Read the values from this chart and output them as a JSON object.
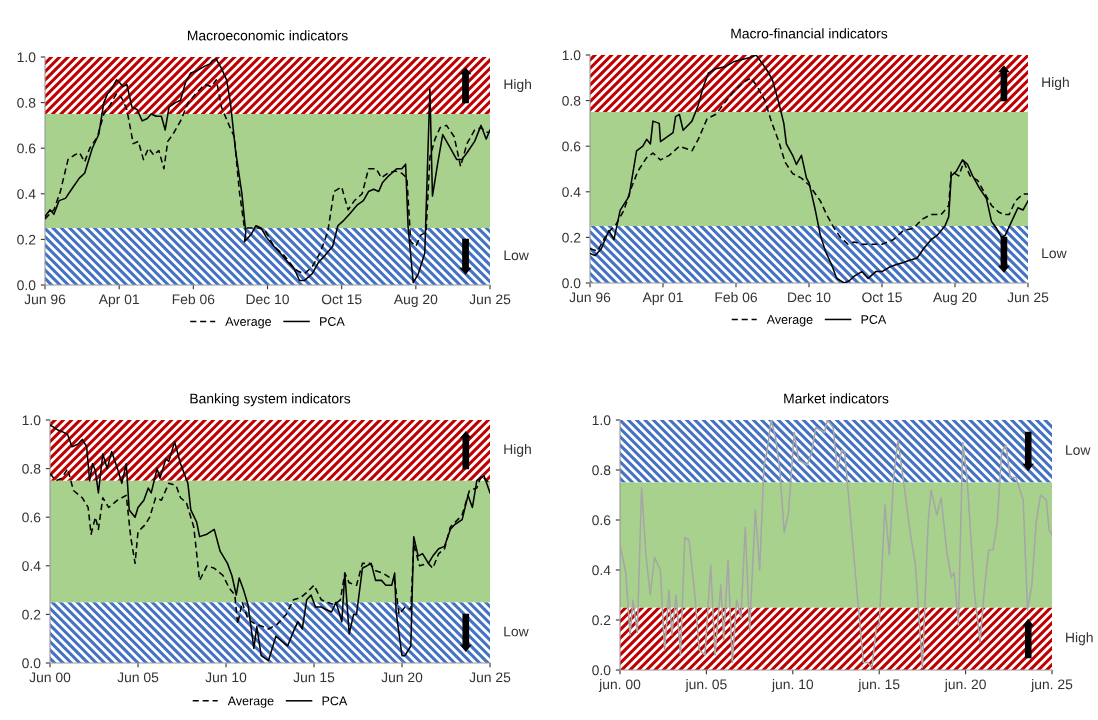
{
  "chart_data": [
    {
      "type": "line",
      "title": "Macroeconomic indicators",
      "legend": "bottom",
      "grid": false,
      "xlim": [
        "1996-06",
        "2025-06"
      ],
      "ylim": [
        0,
        1
      ],
      "xticks": [
        {
          "value": "1996-06",
          "label": "Jun 96"
        },
        {
          "value": "2001-04",
          "label": "Apr 01"
        },
        {
          "value": "2006-02",
          "label": "Feb 06"
        },
        {
          "value": "2010-12",
          "label": "Dec 10"
        },
        {
          "value": "2015-10",
          "label": "Oct 15"
        },
        {
          "value": "2020-08",
          "label": "Aug 20"
        },
        {
          "value": "2025-06",
          "label": "Jun 25"
        }
      ],
      "yticks": [
        {
          "value": 0,
          "label": "0.0"
        },
        {
          "value": 0.2,
          "label": "0.2"
        },
        {
          "value": 0.4,
          "label": "0.4"
        },
        {
          "value": 0.6,
          "label": "0.6"
        },
        {
          "value": 0.8,
          "label": "0.8"
        },
        {
          "value": 1,
          "label": "1.0"
        }
      ],
      "bands": [
        {
          "axis": "y",
          "from": 0.75,
          "to": 1,
          "label": "High",
          "color": "#c00000"
        },
        {
          "axis": "y",
          "from": 0,
          "to": 0.25,
          "label": "Low",
          "color": "#4472c4"
        },
        {
          "axis": "y",
          "from": 0.25,
          "to": 0.75,
          "color": "#a9d18e"
        }
      ],
      "series": [
        {
          "name": "Average",
          "color": "#000000",
          "line_style": "dashed",
          "x": [
            "1996-06",
            "1997-01",
            "1997-06",
            "1997-12",
            "1998-05",
            "1998-09",
            "1999-01",
            "1999-05",
            "1999-11",
            "2000-04",
            "2000-09",
            "2001-02",
            "2001-06",
            "2001-10",
            "2002-03",
            "2002-07",
            "2002-11",
            "2003-03",
            "2003-07",
            "2003-11",
            "2004-03",
            "2004-06",
            "2004-10",
            "2005-04",
            "2005-10",
            "2006-04",
            "2006-11",
            "2007-04",
            "2007-08",
            "2007-12",
            "2008-06",
            "2008-10",
            "2009-02",
            "2009-06",
            "2009-11",
            "2010-05",
            "2010-10",
            "2011-05",
            "2012-01",
            "2012-08",
            "2012-12",
            "2013-05",
            "2013-11",
            "2014-05",
            "2014-11",
            "2015-04",
            "2015-10",
            "2016-03",
            "2016-08",
            "2017-02",
            "2017-07",
            "2018-01",
            "2018-05",
            "2018-10",
            "2019-04",
            "2019-09",
            "2020-01",
            "2020-04",
            "2020-08",
            "2020-12",
            "2021-04",
            "2021-07",
            "2021-11",
            "2022-03",
            "2022-08",
            "2023-02",
            "2023-07",
            "2023-12",
            "2024-06",
            "2024-11",
            "2025-03",
            "2025-06"
          ],
          "values": [
            0.29,
            0.33,
            0.41,
            0.55,
            0.57,
            0.58,
            0.54,
            0.6,
            0.65,
            0.75,
            0.79,
            0.84,
            0.82,
            0.77,
            0.62,
            0.63,
            0.55,
            0.6,
            0.57,
            0.59,
            0.51,
            0.63,
            0.66,
            0.72,
            0.8,
            0.84,
            0.88,
            0.87,
            0.9,
            0.78,
            0.7,
            0.65,
            0.41,
            0.25,
            0.25,
            0.25,
            0.24,
            0.17,
            0.13,
            0.08,
            0.06,
            0.05,
            0.08,
            0.14,
            0.23,
            0.41,
            0.43,
            0.33,
            0.37,
            0.4,
            0.51,
            0.51,
            0.47,
            0.49,
            0.5,
            0.49,
            0.47,
            0.19,
            0.17,
            0.22,
            0.23,
            0.56,
            0.64,
            0.69,
            0.7,
            0.65,
            0.52,
            0.62,
            0.68,
            0.69,
            0.67,
            0.67
          ]
        },
        {
          "name": "PCA",
          "color": "#000000",
          "line_style": "solid",
          "x": [
            "1996-06",
            "1996-10",
            "1997-01",
            "1997-05",
            "1997-10",
            "1998-04",
            "1998-09",
            "1999-01",
            "1999-07",
            "1999-12",
            "2000-04",
            "2000-07",
            "2000-09",
            "2001-02",
            "2001-04",
            "2001-07",
            "2001-10",
            "2002-02",
            "2002-06",
            "2002-10",
            "2003-02",
            "2003-05",
            "2003-09",
            "2004-01",
            "2004-04",
            "2004-07",
            "2004-12",
            "2005-04",
            "2005-08",
            "2005-12",
            "2006-05",
            "2006-11",
            "2007-03",
            "2007-05",
            "2007-08",
            "2007-12",
            "2008-04",
            "2008-07",
            "2008-11",
            "2009-04",
            "2009-07",
            "2009-06",
            "2009-11",
            "2010-03",
            "2010-07",
            "2010-11",
            "2011-05",
            "2011-10",
            "2012-04",
            "2012-09",
            "2013-01",
            "2013-05",
            "2013-11",
            "2014-04",
            "2014-09",
            "2015-03",
            "2015-07",
            "2015-11",
            "2016-04",
            "2016-10",
            "2017-03",
            "2017-07",
            "2017-11",
            "2018-03",
            "2018-06",
            "2018-11",
            "2019-05",
            "2019-09",
            "2019-12",
            "2020-02",
            "2020-06",
            "2020-10",
            "2021-03",
            "2021-07",
            "2021-09",
            "2022-01",
            "2022-05",
            "2022-11",
            "2023-04",
            "2023-08",
            "2023-12",
            "2024-06",
            "2024-11",
            "2025-03",
            "2025-06"
          ],
          "values": [
            0.3,
            0.33,
            0.31,
            0.37,
            0.38,
            0.43,
            0.47,
            0.49,
            0.6,
            0.66,
            0.8,
            0.84,
            0.85,
            0.9,
            0.89,
            0.87,
            0.88,
            0.78,
            0.77,
            0.72,
            0.73,
            0.75,
            0.74,
            0.74,
            0.68,
            0.78,
            0.8,
            0.81,
            0.89,
            0.93,
            0.94,
            0.96,
            0.97,
            0.985,
            0.99,
            0.95,
            0.9,
            0.8,
            0.59,
            0.4,
            0.23,
            0.19,
            0.22,
            0.26,
            0.25,
            0.21,
            0.17,
            0.14,
            0.1,
            0.07,
            0.02,
            0.02,
            0.05,
            0.1,
            0.13,
            0.17,
            0.26,
            0.28,
            0.31,
            0.35,
            0.37,
            0.41,
            0.42,
            0.41,
            0.45,
            0.48,
            0.51,
            0.51,
            0.53,
            0.25,
            0.01,
            0.05,
            0.14,
            0.86,
            0.39,
            0.53,
            0.66,
            0.6,
            0.55,
            0.55,
            0.58,
            0.63,
            0.7,
            0.64,
            0.68
          ]
        }
      ]
    },
    {
      "type": "line",
      "title": "Macro-financial indicators",
      "legend": "bottom",
      "grid": false,
      "xlim": [
        "1996-06",
        "2025-06"
      ],
      "ylim": [
        0,
        1
      ],
      "xticks": [
        {
          "value": "1996-06",
          "label": "Jun 96"
        },
        {
          "value": "2001-04",
          "label": "Apr 01"
        },
        {
          "value": "2006-02",
          "label": "Feb 06"
        },
        {
          "value": "2010-12",
          "label": "Dec 10"
        },
        {
          "value": "2015-10",
          "label": "Oct 15"
        },
        {
          "value": "2020-08",
          "label": "Aug 20"
        },
        {
          "value": "2025-06",
          "label": "Jun 25"
        }
      ],
      "yticks": [
        {
          "value": 0,
          "label": "0.0"
        },
        {
          "value": 0.2,
          "label": "0.2"
        },
        {
          "value": 0.4,
          "label": "0.4"
        },
        {
          "value": 0.6,
          "label": "0.6"
        },
        {
          "value": 0.8,
          "label": "0.8"
        },
        {
          "value": 1,
          "label": "1.0"
        }
      ],
      "bands": [
        {
          "axis": "y",
          "from": 0.75,
          "to": 1,
          "label": "High",
          "color": "#c00000"
        },
        {
          "axis": "y",
          "from": 0,
          "to": 0.25,
          "label": "Low",
          "color": "#4472c4"
        },
        {
          "axis": "y",
          "from": 0.25,
          "to": 0.75,
          "color": "#a9d18e"
        }
      ],
      "series": [
        {
          "name": "Average",
          "color": "#000000",
          "line_style": "dashed",
          "x": [
            "1996-06",
            "1996-12",
            "1997-06",
            "1997-10",
            "1998-03",
            "1998-09",
            "1999-03",
            "1999-08",
            "2000-03",
            "2000-08",
            "2001-02",
            "2001-09",
            "2002-05",
            "2003-03",
            "2003-08",
            "2004-03",
            "2004-10",
            "2005-05",
            "2005-12",
            "2006-08",
            "2007-02",
            "2007-07",
            "2008-01",
            "2008-06",
            "2008-12",
            "2009-05",
            "2009-11",
            "2010-06",
            "2010-12",
            "2011-09",
            "2012-02",
            "2012-08",
            "2013-01",
            "2013-07",
            "2013-12",
            "2014-06",
            "2015-02",
            "2015-10",
            "2016-07",
            "2017-03",
            "2017-11",
            "2018-06",
            "2019-01",
            "2019-09",
            "2020-03",
            "2020-05",
            "2020-11",
            "2021-03",
            "2021-08",
            "2022-02",
            "2022-08",
            "2023-01",
            "2023-07",
            "2023-11",
            "2024-03",
            "2024-08",
            "2025-02",
            "2025-06"
          ],
          "values": [
            0.15,
            0.14,
            0.2,
            0.23,
            0.26,
            0.32,
            0.42,
            0.49,
            0.55,
            0.57,
            0.54,
            0.56,
            0.6,
            0.58,
            0.63,
            0.72,
            0.74,
            0.79,
            0.84,
            0.88,
            0.9,
            0.86,
            0.8,
            0.71,
            0.62,
            0.53,
            0.48,
            0.46,
            0.43,
            0.36,
            0.3,
            0.24,
            0.2,
            0.17,
            0.18,
            0.17,
            0.17,
            0.17,
            0.19,
            0.23,
            0.24,
            0.28,
            0.3,
            0.3,
            0.34,
            0.49,
            0.47,
            0.53,
            0.47,
            0.45,
            0.39,
            0.34,
            0.31,
            0.3,
            0.3,
            0.36,
            0.39,
            0.39
          ]
        },
        {
          "name": "PCA",
          "color": "#000000",
          "line_style": "solid",
          "x": [
            "1996-06",
            "1996-10",
            "1997-03",
            "1997-09",
            "1998-01",
            "1998-06",
            "1999-01",
            "1999-07",
            "1999-12",
            "2000-03",
            "2000-06",
            "2000-08",
            "2001-01",
            "2001-02",
            "2001-07",
            "2001-12",
            "2002-02",
            "2002-05",
            "2002-08",
            "2003-03",
            "2003-08",
            "2003-12",
            "2004-04",
            "2004-10",
            "2005-06",
            "2005-12",
            "2006-07",
            "2007-02",
            "2007-06",
            "2007-10",
            "2008-03",
            "2008-07",
            "2008-12",
            "2009-04",
            "2009-06",
            "2009-11",
            "2010-02",
            "2010-06",
            "2010-10",
            "2010-12",
            "2011-05",
            "2011-09",
            "2012-01",
            "2012-06",
            "2012-10",
            "2013-04",
            "2013-08",
            "2013-12",
            "2014-06",
            "2014-11",
            "2015-05",
            "2015-10",
            "2016-04",
            "2016-09",
            "2017-03",
            "2017-08",
            "2018-02",
            "2018-07",
            "2019-01",
            "2019-06",
            "2019-12",
            "2020-03",
            "2020-05",
            "2020-09",
            "2021-02",
            "2021-06",
            "2021-10",
            "2022-03",
            "2022-09",
            "2023-01",
            "2023-05",
            "2023-09",
            "2023-12",
            "2024-05",
            "2024-10",
            "2025-02",
            "2025-06"
          ],
          "values": [
            0.13,
            0.12,
            0.15,
            0.23,
            0.19,
            0.32,
            0.38,
            0.58,
            0.6,
            0.63,
            0.61,
            0.71,
            0.7,
            0.62,
            0.64,
            0.66,
            0.73,
            0.74,
            0.67,
            0.71,
            0.78,
            0.86,
            0.92,
            0.94,
            0.95,
            0.97,
            0.98,
            0.99,
            1.0,
            0.97,
            0.93,
            0.89,
            0.79,
            0.7,
            0.61,
            0.56,
            0.52,
            0.56,
            0.46,
            0.44,
            0.32,
            0.21,
            0.14,
            0.08,
            0.02,
            0.0,
            0.01,
            0.03,
            0.05,
            0.02,
            0.05,
            0.05,
            0.07,
            0.08,
            0.09,
            0.1,
            0.11,
            0.15,
            0.19,
            0.21,
            0.25,
            0.29,
            0.47,
            0.49,
            0.54,
            0.52,
            0.47,
            0.42,
            0.37,
            0.27,
            0.24,
            0.2,
            0.21,
            0.27,
            0.33,
            0.32,
            0.36
          ]
        }
      ]
    },
    {
      "type": "line",
      "title": "Banking system indicators",
      "legend": "bottom",
      "grid": false,
      "xlim": [
        "2000-06",
        "2025-06"
      ],
      "ylim": [
        0,
        1
      ],
      "xticks": [
        {
          "value": "2000-06",
          "label": "Jun 00"
        },
        {
          "value": "2005-06",
          "label": "Jun 05"
        },
        {
          "value": "2010-06",
          "label": "Jun 10"
        },
        {
          "value": "2015-06",
          "label": "Jun 15"
        },
        {
          "value": "2020-06",
          "label": "Jun 20"
        },
        {
          "value": "2025-06",
          "label": "Jun 25"
        }
      ],
      "yticks": [
        {
          "value": 0,
          "label": "0.0"
        },
        {
          "value": 0.2,
          "label": "0.2"
        },
        {
          "value": 0.4,
          "label": "0.4"
        },
        {
          "value": 0.6,
          "label": "0.6"
        },
        {
          "value": 0.8,
          "label": "0.8"
        },
        {
          "value": 1,
          "label": "1.0"
        }
      ],
      "bands": [
        {
          "axis": "y",
          "from": 0.75,
          "to": 1,
          "label": "High",
          "color": "#c00000"
        },
        {
          "axis": "y",
          "from": 0,
          "to": 0.25,
          "label": "Low",
          "color": "#4472c4"
        },
        {
          "axis": "y",
          "from": 0.25,
          "to": 0.75,
          "color": "#a9d18e"
        }
      ],
      "series": [
        {
          "name": "Average",
          "color": "#000000",
          "line_style": "dashed",
          "x": [
            "2000-06",
            "2000-10",
            "2001-02",
            "2001-06",
            "2001-10",
            "2002-04",
            "2002-08",
            "2002-10",
            "2003-01",
            "2003-03",
            "2003-06",
            "2003-10",
            "2004-04",
            "2004-10",
            "2005-01",
            "2005-04",
            "2005-06",
            "2005-11",
            "2006-02",
            "2006-06",
            "2006-10",
            "2007-03",
            "2007-08",
            "2007-11",
            "2008-03",
            "2008-08",
            "2008-12",
            "2009-05",
            "2009-10",
            "2010-04",
            "2010-08",
            "2010-12",
            "2011-02",
            "2011-05",
            "2011-09",
            "2012-02",
            "2012-07",
            "2012-11",
            "2013-05",
            "2013-11",
            "2014-04",
            "2014-09",
            "2015-01",
            "2015-06",
            "2015-11",
            "2016-03",
            "2016-08",
            "2016-12",
            "2017-03",
            "2017-06",
            "2017-11",
            "2018-03",
            "2018-08",
            "2018-12",
            "2019-05",
            "2019-10",
            "2020-01",
            "2020-04",
            "2020-08",
            "2020-12",
            "2021-02",
            "2021-06",
            "2021-12",
            "2022-03",
            "2022-07",
            "2022-11",
            "2023-03",
            "2023-08",
            "2023-11",
            "2024-04",
            "2024-09",
            "2024-12",
            "2025-04",
            "2025-06"
          ],
          "values": [
            0.78,
            0.75,
            0.76,
            0.8,
            0.71,
            0.68,
            0.64,
            0.53,
            0.6,
            0.55,
            0.68,
            0.64,
            0.67,
            0.69,
            0.52,
            0.41,
            0.54,
            0.57,
            0.6,
            0.68,
            0.67,
            0.74,
            0.73,
            0.68,
            0.66,
            0.56,
            0.34,
            0.4,
            0.39,
            0.36,
            0.31,
            0.28,
            0.16,
            0.25,
            0.18,
            0.16,
            0.15,
            0.14,
            0.16,
            0.2,
            0.26,
            0.27,
            0.29,
            0.32,
            0.26,
            0.25,
            0.24,
            0.26,
            0.37,
            0.33,
            0.32,
            0.41,
            0.41,
            0.38,
            0.37,
            0.35,
            0.34,
            0.2,
            0.23,
            0.22,
            0.49,
            0.4,
            0.41,
            0.39,
            0.45,
            0.47,
            0.56,
            0.59,
            0.61,
            0.71,
            0.72,
            0.77,
            0.75,
            0.74
          ]
        },
        {
          "name": "PCA",
          "color": "#000000",
          "line_style": "solid",
          "x": [
            "2000-06",
            "2000-11",
            "2001-03",
            "2001-06",
            "2001-09",
            "2002-01",
            "2002-04",
            "2002-07",
            "2002-09",
            "2002-11",
            "2003-01",
            "2003-03",
            "2003-06",
            "2003-09",
            "2003-12",
            "2004-04",
            "2004-07",
            "2004-10",
            "2004-12",
            "2005-04",
            "2005-06",
            "2005-10",
            "2006-01",
            "2006-03",
            "2006-07",
            "2006-09",
            "2007-01",
            "2007-03",
            "2007-07",
            "2007-11",
            "2008-04",
            "2008-06",
            "2008-10",
            "2008-12",
            "2009-05",
            "2009-10",
            "2010-02",
            "2010-07",
            "2010-10",
            "2011-01",
            "2011-03",
            "2011-06",
            "2011-09",
            "2012-01",
            "2012-03",
            "2012-06",
            "2012-11",
            "2013-04",
            "2013-08",
            "2013-12",
            "2014-04",
            "2014-07",
            "2014-10",
            "2015-01",
            "2015-04",
            "2015-07",
            "2015-11",
            "2016-02",
            "2016-06",
            "2016-09",
            "2017-01",
            "2017-03",
            "2017-06",
            "2017-09",
            "2017-11",
            "2018-03",
            "2018-06",
            "2018-09",
            "2018-12",
            "2019-04",
            "2019-07",
            "2019-11",
            "2020-01",
            "2020-02",
            "2020-06",
            "2020-08",
            "2020-12",
            "2021-02",
            "2021-05",
            "2021-08",
            "2021-12",
            "2022-03",
            "2022-07",
            "2022-11",
            "2023-03",
            "2023-06",
            "2023-11",
            "2024-03",
            "2024-06",
            "2024-09",
            "2024-11",
            "2025-02",
            "2025-06"
          ],
          "values": [
            0.98,
            0.96,
            0.95,
            0.94,
            0.89,
            0.9,
            0.92,
            0.89,
            0.75,
            0.82,
            0.79,
            0.7,
            0.86,
            0.8,
            0.87,
            0.8,
            0.74,
            0.82,
            0.63,
            0.6,
            0.64,
            0.67,
            0.72,
            0.7,
            0.8,
            0.76,
            0.84,
            0.83,
            0.91,
            0.82,
            0.74,
            0.63,
            0.58,
            0.52,
            0.53,
            0.55,
            0.46,
            0.41,
            0.36,
            0.28,
            0.35,
            0.3,
            0.24,
            0.06,
            0.15,
            0.03,
            0.01,
            0.11,
            0.09,
            0.07,
            0.13,
            0.17,
            0.14,
            0.26,
            0.28,
            0.23,
            0.23,
            0.22,
            0.21,
            0.25,
            0.17,
            0.37,
            0.12,
            0.2,
            0.2,
            0.39,
            0.4,
            0.41,
            0.34,
            0.34,
            0.32,
            0.32,
            0.37,
            0.21,
            0.03,
            0.03,
            0.07,
            0.52,
            0.44,
            0.45,
            0.41,
            0.44,
            0.47,
            0.48,
            0.55,
            0.57,
            0.59,
            0.69,
            0.64,
            0.75,
            0.76,
            0.77,
            0.7
          ]
        }
      ]
    },
    {
      "type": "line",
      "title": "Market indicators",
      "grid": false,
      "xlim": [
        "2000-06",
        "2025-06"
      ],
      "ylim": [
        0,
        1
      ],
      "xticks": [
        {
          "value": "2000-06",
          "label": "jun. 00"
        },
        {
          "value": "2005-06",
          "label": "jun. 05"
        },
        {
          "value": "2010-06",
          "label": "jun. 10"
        },
        {
          "value": "2015-06",
          "label": "jun. 15"
        },
        {
          "value": "2020-06",
          "label": "jun. 20"
        },
        {
          "value": "2025-06",
          "label": "jun. 25"
        }
      ],
      "yticks": [
        {
          "value": 0,
          "label": "0.0"
        },
        {
          "value": 0.2,
          "label": "0.2"
        },
        {
          "value": 0.4,
          "label": "0.4"
        },
        {
          "value": 0.6,
          "label": "0.6"
        },
        {
          "value": 0.8,
          "label": "0.8"
        },
        {
          "value": 1,
          "label": "1.0"
        }
      ],
      "bands": [
        {
          "axis": "y",
          "from": 0,
          "to": 0.25,
          "label": "High",
          "color": "#c00000"
        },
        {
          "axis": "y",
          "from": 0.75,
          "to": 1,
          "label": "Low",
          "color": "#4472c4"
        },
        {
          "axis": "y",
          "from": 0.25,
          "to": 0.75,
          "color": "#a9d18e"
        }
      ],
      "series": [
        {
          "color": "#a6a6a6",
          "line_style": "solid",
          "x": [
            "2000-06",
            "2000-10",
            "2001-01",
            "2001-03",
            "2001-06",
            "2001-09",
            "2001-12",
            "2002-03",
            "2002-06",
            "2002-10",
            "2003-01",
            "2003-04",
            "2003-06",
            "2003-09",
            "2003-12",
            "2004-03",
            "2004-06",
            "2004-10",
            "2005-01",
            "2005-05",
            "2005-09",
            "2005-12",
            "2006-04",
            "2006-06",
            "2006-09",
            "2006-12",
            "2007-03",
            "2007-06",
            "2007-09",
            "2007-12",
            "2008-04",
            "2008-07",
            "2008-10",
            "2008-12",
            "2009-03",
            "2009-06",
            "2009-09",
            "2009-12",
            "2010-03",
            "2010-07",
            "2010-10",
            "2011-04",
            "2011-07",
            "2011-10",
            "2012-04",
            "2012-06",
            "2012-10",
            "2013-01",
            "2013-04",
            "2013-06",
            "2013-11",
            "2014-02",
            "2014-07",
            "2014-10",
            "2015-01",
            "2015-04",
            "2015-06",
            "2015-10",
            "2016-01",
            "2016-04",
            "2016-07",
            "2016-11",
            "2017-04",
            "2017-07",
            "2017-12",
            "2018-04",
            "2018-06",
            "2018-10",
            "2019-01",
            "2019-05",
            "2019-08",
            "2019-10",
            "2020-01",
            "2020-04",
            "2020-07",
            "2020-12",
            "2021-04",
            "2021-07",
            "2021-10",
            "2022-01",
            "2022-04",
            "2022-07",
            "2022-10",
            "2023-01",
            "2023-05",
            "2023-10",
            "2024-01",
            "2024-04",
            "2024-07",
            "2024-10",
            "2025-02",
            "2025-04",
            "2025-06"
          ],
          "values": [
            0.5,
            0.39,
            0.14,
            0.28,
            0.15,
            0.73,
            0.46,
            0.3,
            0.45,
            0.4,
            0.08,
            0.32,
            0.14,
            0.3,
            0.06,
            0.53,
            0.52,
            0.3,
            0.08,
            0.06,
            0.42,
            0.06,
            0.34,
            0.12,
            0.44,
            0.03,
            0.28,
            0.21,
            0.57,
            0.16,
            0.64,
            0.4,
            0.82,
            0.87,
            1.0,
            0.93,
            0.8,
            0.55,
            0.63,
            0.95,
            0.84,
            0.82,
            0.87,
            0.97,
            0.95,
            1.0,
            0.97,
            0.8,
            0.88,
            0.87,
            0.55,
            0.35,
            0.03,
            0.03,
            0.01,
            0.17,
            0.18,
            0.66,
            0.46,
            0.77,
            0.92,
            0.75,
            0.53,
            0.43,
            0.01,
            0.59,
            0.72,
            0.62,
            0.69,
            0.47,
            0.37,
            0.39,
            0.18,
            0.91,
            0.77,
            0.32,
            0.11,
            0.32,
            0.48,
            0.48,
            0.59,
            0.87,
            0.9,
            0.77,
            0.77,
            0.68,
            0.24,
            0.34,
            0.59,
            0.7,
            0.68,
            0.56,
            0.54
          ]
        }
      ]
    }
  ]
}
